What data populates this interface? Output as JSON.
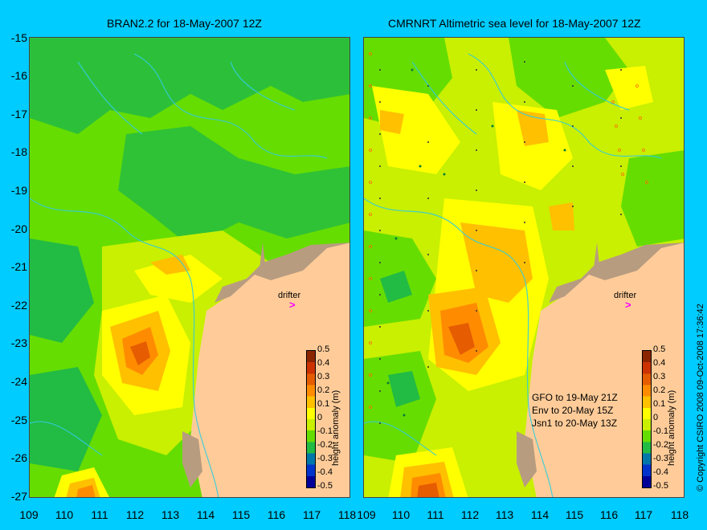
{
  "titles": {
    "left": "BRAN2.2 for 18-May-2007 12Z",
    "right": "CMRNRT Altimetric sea level  for 18-May-2007 12Z"
  },
  "y_ticks": [
    "-15",
    "-16",
    "-17",
    "-18",
    "-19",
    "-20",
    "-21",
    "-22",
    "-23",
    "-24",
    "-25",
    "-26",
    "-27"
  ],
  "x_ticks_left": [
    "109",
    "110",
    "111",
    "112",
    "113",
    "114",
    "115",
    "116",
    "117",
    "118"
  ],
  "x_ticks_right": [
    "109",
    "110",
    "111",
    "112",
    "113",
    "114",
    "115",
    "116",
    "117",
    "118"
  ],
  "drifter_label": "drifter",
  "drifter_mark": ">",
  "colorbar": {
    "title": "height anomaly (m)",
    "ticks": [
      "0.5",
      "0.4",
      "0.3",
      "0.2",
      "0.1",
      "0",
      "-0.1",
      "-0.2",
      "-0.3",
      "-0.4",
      "-0.5"
    ],
    "colors": [
      "#8b2500",
      "#cc3300",
      "#e65c00",
      "#ff8c00",
      "#ffc000",
      "#ffff00",
      "#c8f000",
      "#66dd00",
      "#22bb44",
      "#0077aa",
      "#0033cc",
      "#000099"
    ]
  },
  "altimetry_note": [
    "GFO to 19-May 21Z",
    "Env to 20-May 15Z",
    "Jsn1 to 20-May 13Z"
  ],
  "copyright": "© Copyright CSIRO 2008    09-Oct-2008 17:36:42",
  "map_colors": {
    "land": "#ffcc99",
    "island": "#b89c80",
    "contour": "#33ccdd",
    "low": "#22bb44",
    "mid": "#66dd00",
    "zero": "#c8f000",
    "pos": "#ffff00",
    "high": "#ffc000",
    "higher": "#ff8c00",
    "peak": "#e65c00"
  }
}
